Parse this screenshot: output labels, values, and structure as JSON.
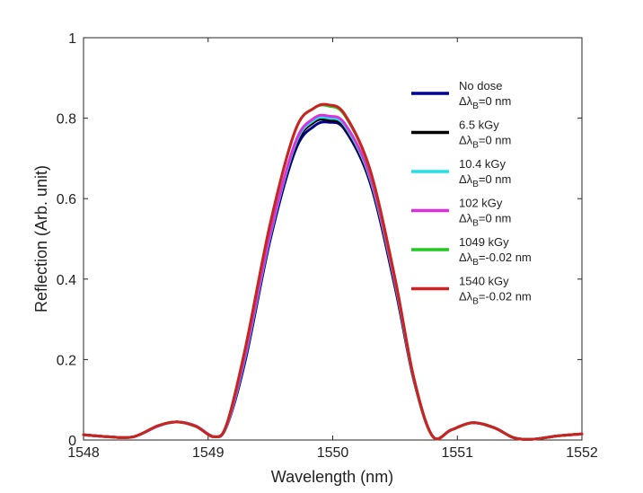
{
  "chart_data": {
    "type": "line",
    "title": "",
    "xlabel": "Wavelength (nm)",
    "ylabel": "Reflection (Arb. unit)",
    "xlim": [
      1548,
      1552
    ],
    "ylim": [
      0,
      1
    ],
    "xticks": [
      1548,
      1549,
      1550,
      1551,
      1552
    ],
    "yticks": [
      0,
      0.2,
      0.4,
      0.6,
      0.8,
      1
    ],
    "xtick_labels": [
      "1548",
      "1549",
      "1550",
      "1551",
      "1552"
    ],
    "ytick_labels": [
      "0",
      "0.2",
      "0.4",
      "0.6",
      "0.8",
      "1"
    ],
    "grid": false,
    "legend_position": "top-right",
    "x": [
      1548.0,
      1548.2,
      1548.4,
      1548.6,
      1548.75,
      1548.9,
      1549.05,
      1549.15,
      1549.3,
      1549.5,
      1549.7,
      1549.85,
      1549.97,
      1550.1,
      1550.3,
      1550.5,
      1550.65,
      1550.8,
      1550.95,
      1551.12,
      1551.3,
      1551.45,
      1551.6,
      1551.8,
      1552.0
    ],
    "series": [
      {
        "name": "No dose",
        "shift": "0 nm",
        "color": "#00008b",
        "values": [
          0.013,
          0.008,
          0.008,
          0.035,
          0.045,
          0.035,
          0.008,
          0.035,
          0.2,
          0.5,
          0.72,
          0.78,
          0.79,
          0.77,
          0.64,
          0.38,
          0.15,
          0.01,
          0.025,
          0.043,
          0.03,
          0.006,
          0.002,
          0.01,
          0.015
        ]
      },
      {
        "name": "6.5 kGy",
        "shift": "0 nm",
        "color": "#000000",
        "values": [
          0.013,
          0.008,
          0.008,
          0.035,
          0.045,
          0.035,
          0.008,
          0.036,
          0.21,
          0.51,
          0.73,
          0.79,
          0.795,
          0.775,
          0.645,
          0.385,
          0.152,
          0.01,
          0.025,
          0.043,
          0.03,
          0.006,
          0.002,
          0.01,
          0.015
        ]
      },
      {
        "name": "10.4 kGy",
        "shift": "0 nm",
        "color": "#20e0e8",
        "values": [
          0.013,
          0.008,
          0.008,
          0.035,
          0.045,
          0.035,
          0.008,
          0.036,
          0.21,
          0.51,
          0.735,
          0.795,
          0.8,
          0.78,
          0.65,
          0.39,
          0.153,
          0.01,
          0.025,
          0.043,
          0.03,
          0.006,
          0.002,
          0.01,
          0.015
        ]
      },
      {
        "name": "102 kGy",
        "shift": "0 nm",
        "color": "#dd30dd",
        "values": [
          0.013,
          0.008,
          0.008,
          0.035,
          0.045,
          0.035,
          0.008,
          0.037,
          0.215,
          0.515,
          0.74,
          0.8,
          0.805,
          0.785,
          0.655,
          0.392,
          0.154,
          0.01,
          0.025,
          0.043,
          0.03,
          0.006,
          0.002,
          0.01,
          0.015
        ]
      },
      {
        "name": "1049 kGy",
        "shift": "-0.02 nm",
        "color": "#22c822",
        "values": [
          0.013,
          0.008,
          0.008,
          0.036,
          0.045,
          0.034,
          0.008,
          0.04,
          0.23,
          0.54,
          0.77,
          0.825,
          0.83,
          0.805,
          0.67,
          0.4,
          0.155,
          0.01,
          0.025,
          0.043,
          0.03,
          0.006,
          0.002,
          0.01,
          0.015
        ]
      },
      {
        "name": "1540 kGy",
        "shift": "-0.02 nm",
        "color": "#cc2222",
        "values": [
          0.013,
          0.008,
          0.008,
          0.036,
          0.045,
          0.034,
          0.008,
          0.04,
          0.23,
          0.54,
          0.77,
          0.825,
          0.833,
          0.808,
          0.672,
          0.402,
          0.156,
          0.01,
          0.025,
          0.043,
          0.03,
          0.006,
          0.002,
          0.01,
          0.015
        ]
      }
    ],
    "legend_delta_prefix": "Δλ",
    "legend_delta_subscript": "B",
    "legend_delta_eq": "="
  }
}
